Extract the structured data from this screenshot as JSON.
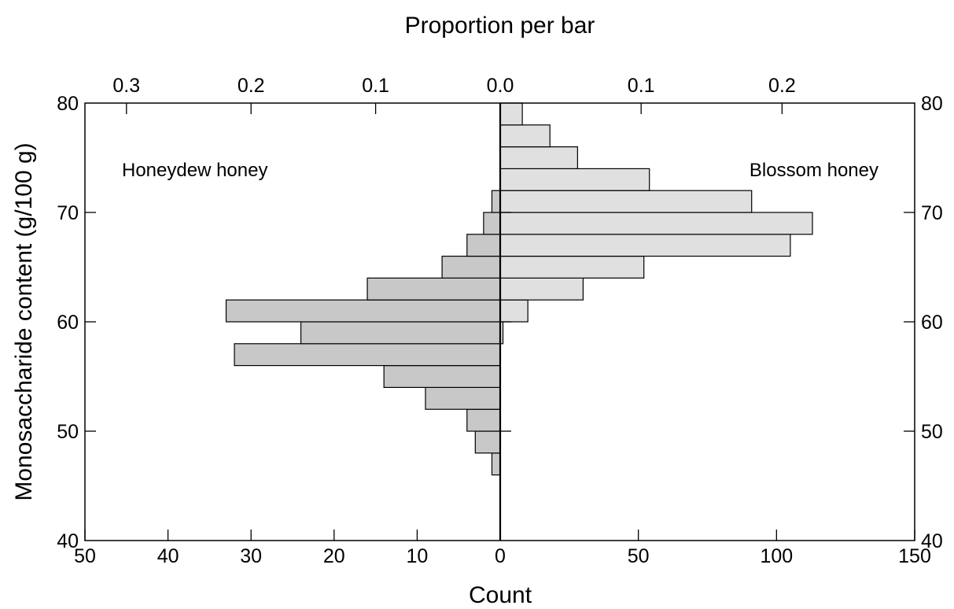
{
  "chart_data": {
    "type": "bar",
    "orientation": "horizontal",
    "layout": "back-to-back histogram",
    "title": "Proportion per bar",
    "xlabel": "Count",
    "ylabel": "Monosaccharide content (g/100 g)",
    "ylim": [
      40,
      80
    ],
    "bin_width": 2,
    "annotations": [
      "Honeydew honey",
      "Blossom honey"
    ],
    "left_axis": {
      "xlim": [
        0,
        50
      ],
      "ticks": [
        50,
        40,
        30,
        20,
        10,
        0
      ]
    },
    "right_axis": {
      "xlim": [
        0,
        150
      ],
      "ticks": [
        0,
        50,
        100,
        150
      ]
    },
    "top_axis": {
      "left_ticks": [
        "0.3",
        "0.2",
        "0.1",
        "0.0"
      ],
      "right_ticks": [
        "0.1",
        "0.2"
      ]
    },
    "y_ticks": [
      40,
      50,
      60,
      70,
      80
    ],
    "series": [
      {
        "name": "Honeydew honey",
        "color": "#c8c8c8",
        "bins": [
          {
            "lo": 46,
            "hi": 48,
            "count": 1
          },
          {
            "lo": 48,
            "hi": 50,
            "count": 3
          },
          {
            "lo": 50,
            "hi": 52,
            "count": 4
          },
          {
            "lo": 52,
            "hi": 54,
            "count": 9
          },
          {
            "lo": 54,
            "hi": 56,
            "count": 14
          },
          {
            "lo": 56,
            "hi": 58,
            "count": 32
          },
          {
            "lo": 58,
            "hi": 60,
            "count": 24
          },
          {
            "lo": 60,
            "hi": 62,
            "count": 33
          },
          {
            "lo": 62,
            "hi": 64,
            "count": 16
          },
          {
            "lo": 64,
            "hi": 66,
            "count": 7
          },
          {
            "lo": 66,
            "hi": 68,
            "count": 4
          },
          {
            "lo": 68,
            "hi": 70,
            "count": 2
          },
          {
            "lo": 70,
            "hi": 72,
            "count": 1
          }
        ]
      },
      {
        "name": "Blossom honey",
        "color": "#e0e0e0",
        "bins": [
          {
            "lo": 58,
            "hi": 60,
            "count": 1
          },
          {
            "lo": 60,
            "hi": 62,
            "count": 10
          },
          {
            "lo": 62,
            "hi": 64,
            "count": 30
          },
          {
            "lo": 64,
            "hi": 66,
            "count": 52
          },
          {
            "lo": 66,
            "hi": 68,
            "count": 105
          },
          {
            "lo": 68,
            "hi": 70,
            "count": 113
          },
          {
            "lo": 70,
            "hi": 72,
            "count": 91
          },
          {
            "lo": 72,
            "hi": 74,
            "count": 54
          },
          {
            "lo": 74,
            "hi": 76,
            "count": 28
          },
          {
            "lo": 76,
            "hi": 78,
            "count": 18
          },
          {
            "lo": 78,
            "hi": 80,
            "count": 8
          }
        ]
      }
    ]
  }
}
